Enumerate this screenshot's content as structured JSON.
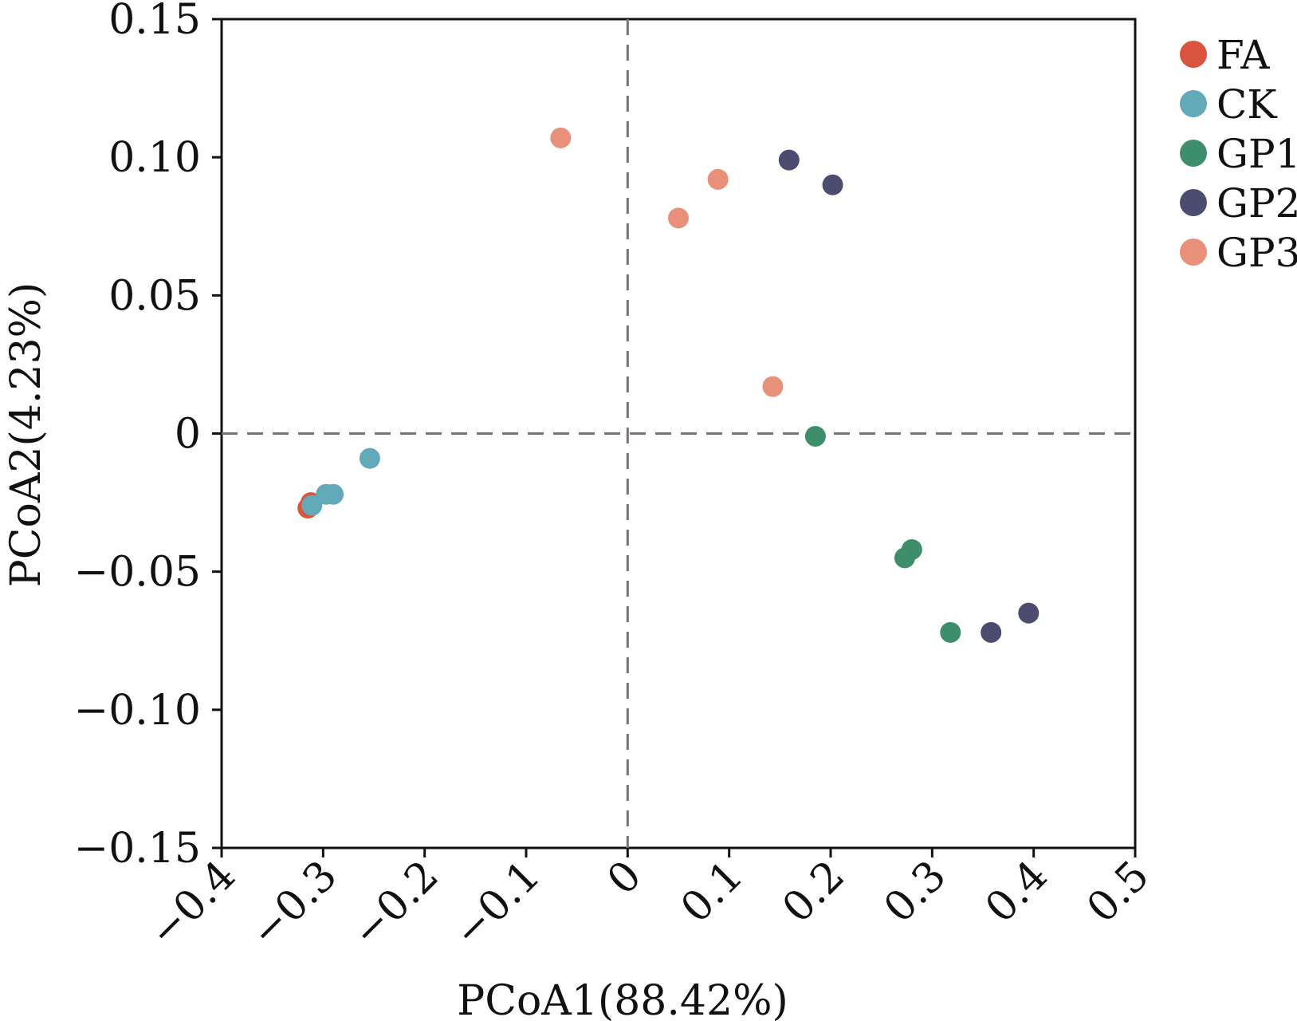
{
  "chart_data": {
    "type": "scatter",
    "title": "",
    "xlabel": "PCoA1(88.42%)",
    "ylabel": "PCoA2(4.23%)",
    "xlim": [
      -0.4,
      0.5
    ],
    "ylim": [
      -0.15,
      0.15
    ],
    "x_ticks": [
      -0.4,
      -0.3,
      -0.2,
      -0.1,
      0,
      0.1,
      0.2,
      0.3,
      0.4,
      0.5
    ],
    "x_tick_labels": [
      "−0.4",
      "−0.3",
      "−0.2",
      "−0.1",
      "0",
      "0.1",
      "0.2",
      "0.3",
      "0.4",
      "0.5"
    ],
    "y_ticks": [
      0.15,
      0.1,
      0.05,
      0,
      -0.05,
      -0.1,
      -0.15
    ],
    "y_tick_labels": [
      "0.15",
      "0.10",
      "0.05",
      "0",
      "−0.05",
      "−0.10",
      "−0.15"
    ],
    "reference_lines": {
      "x": 0,
      "y": 0,
      "style": "dashed"
    },
    "grid": false,
    "legend_position": "right",
    "series": [
      {
        "name": "FA",
        "color": "#d9533f",
        "points": [
          [
            -0.315,
            -0.027
          ],
          [
            -0.312,
            -0.025
          ]
        ]
      },
      {
        "name": "CK",
        "color": "#62aab9",
        "points": [
          [
            -0.311,
            -0.026
          ],
          [
            -0.297,
            -0.022
          ],
          [
            -0.29,
            -0.022
          ],
          [
            -0.254,
            -0.009
          ]
        ]
      },
      {
        "name": "GP1",
        "color": "#3f8e6b",
        "points": [
          [
            0.185,
            -0.001
          ],
          [
            0.273,
            -0.045
          ],
          [
            0.28,
            -0.042
          ],
          [
            0.318,
            -0.072
          ]
        ]
      },
      {
        "name": "GP2",
        "color": "#4c4b70",
        "points": [
          [
            0.159,
            0.099
          ],
          [
            0.202,
            0.09
          ],
          [
            0.358,
            -0.072
          ],
          [
            0.395,
            -0.065
          ]
        ]
      },
      {
        "name": "GP3",
        "color": "#e9907a",
        "points": [
          [
            -0.066,
            0.107
          ],
          [
            0.05,
            0.078
          ],
          [
            0.089,
            0.092
          ],
          [
            0.143,
            0.017
          ]
        ]
      }
    ]
  }
}
